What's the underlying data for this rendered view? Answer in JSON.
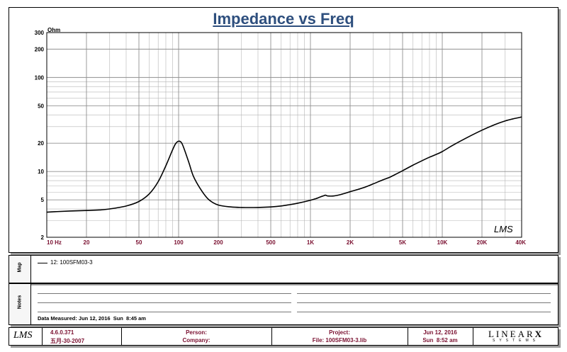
{
  "chart_data": {
    "type": "line",
    "title": "Impedance vs Freq",
    "xlabel": "",
    "ylabel": "Ohm",
    "x_scale": "log",
    "y_scale": "log",
    "xlim": [
      10,
      40000
    ],
    "ylim": [
      2,
      300
    ],
    "grid": true,
    "x_ticks": [
      {
        "value": 10,
        "label": "10 Hz"
      },
      {
        "value": 20,
        "label": "20"
      },
      {
        "value": 50,
        "label": "50"
      },
      {
        "value": 100,
        "label": "100"
      },
      {
        "value": 200,
        "label": "200"
      },
      {
        "value": 500,
        "label": "500"
      },
      {
        "value": 1000,
        "label": "1K"
      },
      {
        "value": 2000,
        "label": "2K"
      },
      {
        "value": 5000,
        "label": "5K"
      },
      {
        "value": 10000,
        "label": "10K"
      },
      {
        "value": 20000,
        "label": "20K"
      },
      {
        "value": 40000,
        "label": "40K"
      }
    ],
    "y_ticks": [
      {
        "value": 2,
        "label": "2"
      },
      {
        "value": 5,
        "label": "5"
      },
      {
        "value": 10,
        "label": "10"
      },
      {
        "value": 20,
        "label": "20"
      },
      {
        "value": 50,
        "label": "50"
      },
      {
        "value": 100,
        "label": "100"
      },
      {
        "value": 200,
        "label": "200"
      },
      {
        "value": 300,
        "label": "300"
      }
    ],
    "series": [
      {
        "name": "12: 100SFM03-3",
        "x": [
          10,
          12,
          15,
          20,
          25,
          30,
          40,
          50,
          60,
          70,
          80,
          90,
          95,
          100,
          105,
          110,
          120,
          130,
          150,
          170,
          200,
          250,
          300,
          400,
          500,
          600,
          700,
          800,
          1000,
          1100,
          1200,
          1250,
          1300,
          1350,
          1500,
          1700,
          2000,
          2500,
          3000,
          3500,
          4000,
          4200,
          5000,
          6000,
          7000,
          8000,
          9000,
          10000,
          12000,
          15000,
          20000,
          25000,
          30000,
          35000,
          40000
        ],
        "y": [
          3.7,
          3.75,
          3.8,
          3.85,
          3.9,
          4.0,
          4.3,
          4.8,
          5.8,
          7.8,
          11.5,
          17.0,
          19.8,
          21.0,
          20.3,
          17.5,
          12.3,
          8.8,
          6.2,
          5.0,
          4.4,
          4.2,
          4.15,
          4.15,
          4.2,
          4.3,
          4.45,
          4.6,
          4.95,
          5.15,
          5.4,
          5.5,
          5.6,
          5.5,
          5.5,
          5.7,
          6.1,
          6.7,
          7.4,
          8.1,
          8.7,
          9.0,
          10.2,
          11.7,
          13.0,
          14.2,
          15.2,
          16.3,
          19.0,
          22.5,
          27.5,
          31.5,
          34.5,
          36.5,
          38.0
        ]
      }
    ]
  },
  "logo": {
    "text": "LMS"
  },
  "legend_section": {
    "label": "Map"
  },
  "notes_section": {
    "label": "Notes",
    "date_measured": "Data Measured: Jun 12, 2016  Sun  8:45 am"
  },
  "footer": {
    "logo_text": "LMS",
    "version": "4.6.0.371",
    "version_date": "五月-30-2007",
    "person_label": "Person:",
    "company_label": "Company:",
    "project_label": "Project:",
    "file_label": "File: 100SFM03-3.lib",
    "date": "Jun 12, 2016",
    "time": "Sun  8:52 am",
    "brand_top": "LINEAR",
    "brand_x": "X",
    "brand_bottom": "SYSTEMS"
  },
  "colors": {
    "title": "#2e4f7e",
    "x_tick": "#7a1030",
    "curve": "#000000",
    "grid": "#b5b5b5",
    "frame": "#000000"
  }
}
